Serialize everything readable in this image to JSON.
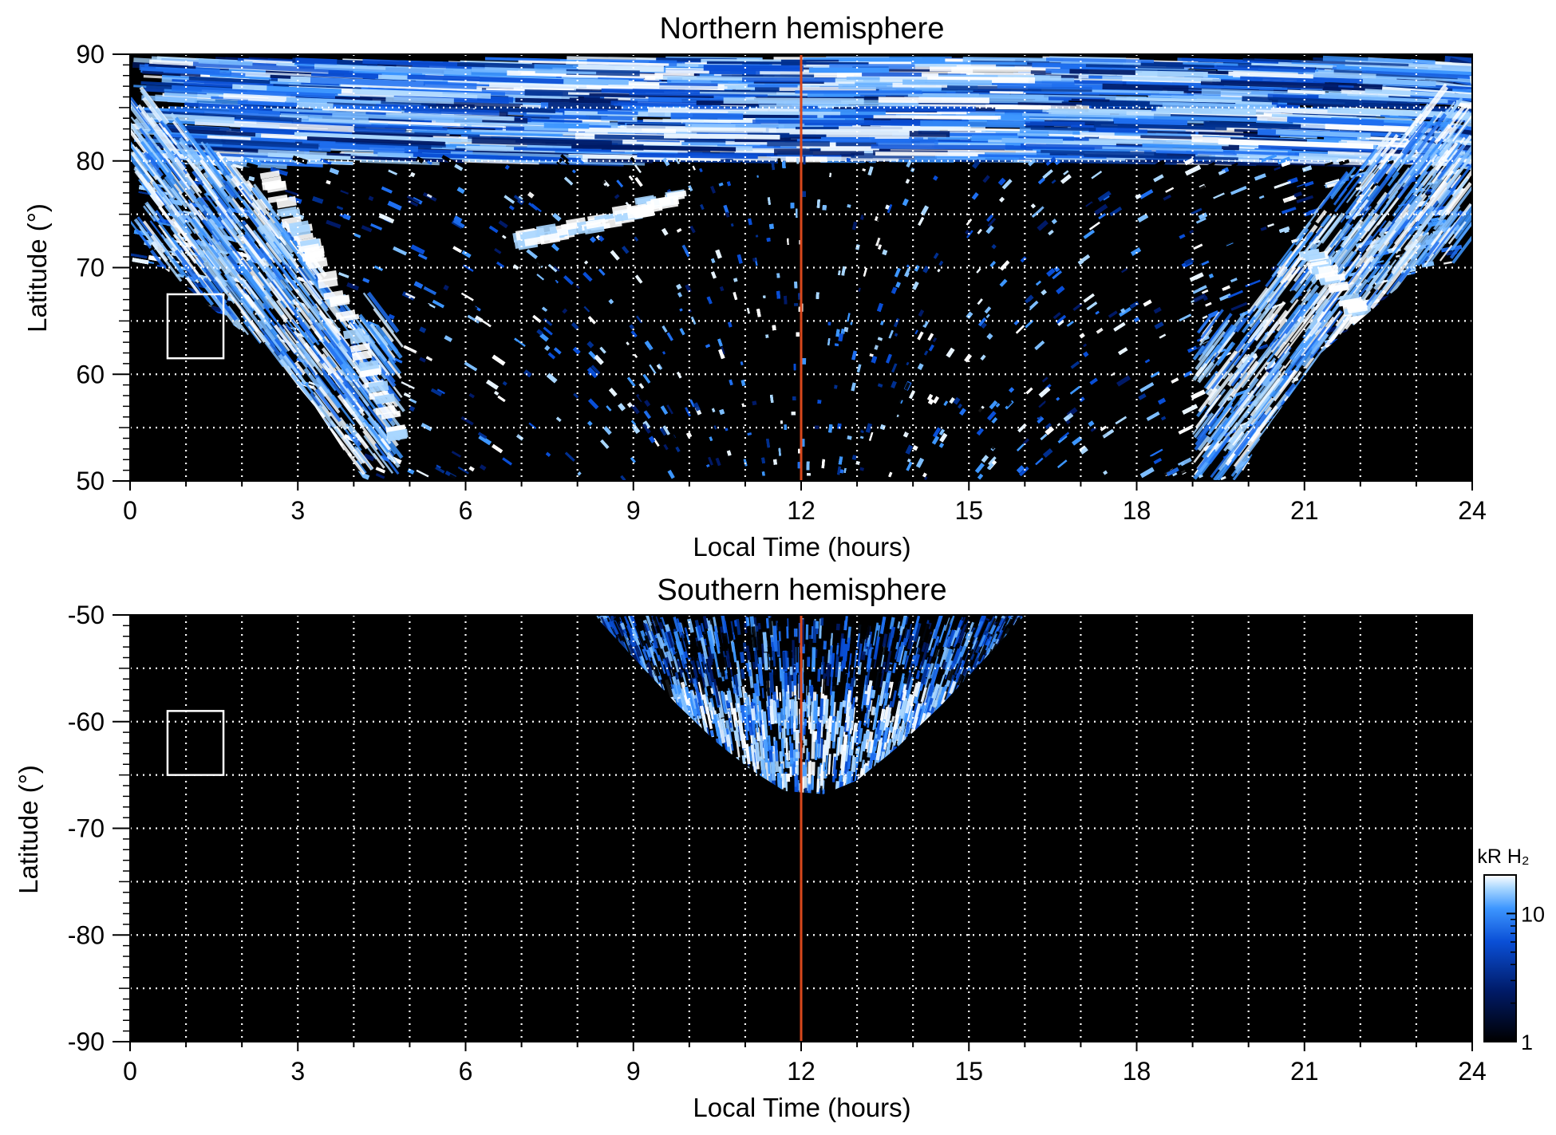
{
  "chart_data": [
    {
      "type": "heatmap",
      "title": "Northern hemisphere",
      "xlabel": "Local Time (hours)",
      "ylabel": "Latitude (°)",
      "xlim": [
        0,
        24
      ],
      "ylim": [
        50,
        90
      ],
      "x_ticks": [
        0,
        3,
        6,
        9,
        12,
        15,
        18,
        21,
        24
      ],
      "y_ticks": [
        50,
        60,
        70,
        80,
        90
      ],
      "grid": true,
      "marker_line": {
        "x": 12,
        "color": "#d9481c"
      },
      "box": {
        "x": [
          0.67,
          1.67
        ],
        "y": [
          61.5,
          67.5
        ]
      },
      "coverage_lower_boundary": {
        "x": [
          0,
          0.6,
          1.5,
          2.5,
          3.3,
          3.8,
          4.2,
          12,
          19.8,
          20.4,
          21.3,
          22.2,
          23.1,
          24
        ],
        "y": [
          70.5,
          70,
          66,
          62,
          57,
          53,
          50,
          50,
          50,
          55.5,
          62,
          66,
          70,
          70.5
        ]
      },
      "bright_features": [
        {
          "x": [
            7.0,
            8.0,
            9.0,
            9.8
          ],
          "y": [
            72.5,
            73.5,
            75.3,
            76.5
          ]
        },
        {
          "x": [
            2.5,
            3.2,
            4.0,
            4.8
          ],
          "y": [
            78,
            72,
            64,
            54
          ]
        },
        {
          "x": [
            21.0,
            21.6,
            22.2
          ],
          "y": [
            72,
            68,
            64
          ]
        }
      ]
    },
    {
      "type": "heatmap",
      "title": "Southern hemisphere",
      "xlabel": "Local Time (hours)",
      "ylabel": "Latitude (°)",
      "xlim": [
        0,
        24
      ],
      "ylim": [
        -90,
        -50
      ],
      "x_ticks": [
        0,
        3,
        6,
        9,
        12,
        15,
        18,
        21,
        24
      ],
      "y_ticks": [
        -90,
        -80,
        -70,
        -60,
        -50
      ],
      "grid": true,
      "marker_line": {
        "x": 12,
        "color": "#d9481c"
      },
      "box": {
        "x": [
          0.67,
          1.67
        ],
        "y": [
          -65,
          -59
        ]
      },
      "coverage_boundary": {
        "x": [
          8.3,
          9.0,
          9.8,
          10.5,
          11.1,
          11.7,
          12.4,
          13.0,
          13.7,
          14.5,
          15.3,
          16.0
        ],
        "y": [
          -50,
          -54,
          -58.5,
          -62,
          -64.5,
          -66.5,
          -66.8,
          -65.5,
          -62.5,
          -58.5,
          -54,
          -50
        ]
      },
      "bright_band_lat": [
        -56,
        -66
      ]
    }
  ],
  "colorbar": {
    "label": "kR H₂",
    "tick_labels": [
      "1",
      "10"
    ],
    "scale": "log",
    "range": [
      1,
      20
    ],
    "colors": [
      "#000000",
      "#001a66",
      "#0a4fd6",
      "#3d96ff",
      "#a8d6ff",
      "#ffffff"
    ]
  },
  "style": {
    "background_plot": "#000000",
    "grid_color": "#ffffff"
  }
}
